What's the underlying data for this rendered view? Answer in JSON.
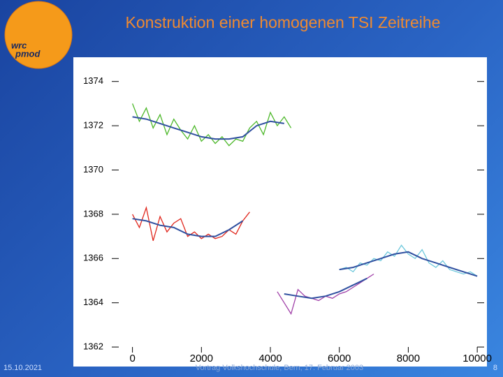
{
  "logo": {
    "line1": "wrc",
    "line2": "pmod"
  },
  "footer": {
    "date": "15.10.2021",
    "center": "Vortrag Volkshochschule, Bern, 17. Februar 2003",
    "page": "8"
  },
  "chart_data": {
    "type": "line",
    "title": "Konstruktion einer homogenen TSI Zeitreihe",
    "xlim": [
      -600,
      10200
    ],
    "xticks": [
      0,
      2000,
      4000,
      6000,
      8000,
      10000
    ],
    "ylim": [
      1361.75,
      1375
    ],
    "yticks": [
      1362,
      1364,
      1366,
      1368,
      1370,
      1372,
      1374
    ],
    "series": [
      {
        "color": "#4db82a",
        "x": [
          0,
          200,
          400,
          600,
          800,
          1000,
          1200,
          1400,
          1600,
          1800,
          2000,
          2200,
          2400,
          2600,
          2800,
          3000,
          3200,
          3400,
          3600,
          3800,
          4000,
          4200,
          4400,
          4600
        ],
        "values": [
          1373.0,
          1372.2,
          1372.8,
          1371.9,
          1372.5,
          1371.6,
          1372.3,
          1371.8,
          1371.4,
          1372.0,
          1371.3,
          1371.6,
          1371.2,
          1371.5,
          1371.1,
          1371.4,
          1371.3,
          1371.9,
          1372.2,
          1371.6,
          1372.6,
          1372.0,
          1372.4,
          1371.9
        ]
      },
      {
        "color": "#3050a0",
        "x": [
          0,
          400,
          800,
          1200,
          1600,
          2000,
          2400,
          2800,
          3200,
          3600,
          4000,
          4400
        ],
        "values": [
          1372.4,
          1372.3,
          1372.1,
          1371.9,
          1371.7,
          1371.5,
          1371.4,
          1371.4,
          1371.5,
          1372.0,
          1372.2,
          1372.1
        ]
      },
      {
        "color": "#e0261c",
        "x": [
          0,
          200,
          400,
          600,
          800,
          1000,
          1200,
          1400,
          1600,
          1800,
          2000,
          2200,
          2400,
          2600,
          2800,
          3000,
          3200,
          3400
        ],
        "values": [
          1368.0,
          1367.4,
          1368.3,
          1366.8,
          1367.9,
          1367.2,
          1367.6,
          1367.8,
          1367.0,
          1367.2,
          1366.9,
          1367.1,
          1366.9,
          1367.0,
          1367.3,
          1367.1,
          1367.7,
          1368.1
        ]
      },
      {
        "color": "#3050a0",
        "x": [
          0,
          400,
          800,
          1200,
          1600,
          2000,
          2400,
          2800,
          3200
        ],
        "values": [
          1367.8,
          1367.7,
          1367.5,
          1367.4,
          1367.1,
          1367.0,
          1367.0,
          1367.3,
          1367.7
        ]
      },
      {
        "color": "#a040a8",
        "x": [
          4200,
          4400,
          4600,
          4800,
          5000,
          5200,
          5400,
          5600,
          5800,
          6000,
          6200,
          6400,
          6600,
          6800,
          7000
        ],
        "values": [
          1364.5,
          1364.0,
          1363.5,
          1364.6,
          1364.3,
          1364.2,
          1364.1,
          1364.3,
          1364.2,
          1364.4,
          1364.5,
          1364.7,
          1364.9,
          1365.1,
          1365.3
        ]
      },
      {
        "color": "#3050a0",
        "x": [
          4400,
          4800,
          5200,
          5600,
          6000,
          6400,
          6800
        ],
        "values": [
          1364.4,
          1364.3,
          1364.2,
          1364.3,
          1364.5,
          1364.8,
          1365.1
        ]
      },
      {
        "color": "#6ec8dc",
        "x": [
          6000,
          6200,
          6400,
          6600,
          6800,
          7000,
          7200,
          7400,
          7600,
          7800,
          8000,
          8200,
          8400,
          8600,
          8800,
          9000,
          9200,
          9400,
          9600,
          9800,
          10000
        ],
        "values": [
          1365.5,
          1365.6,
          1365.4,
          1365.8,
          1365.7,
          1366.0,
          1365.9,
          1366.3,
          1366.1,
          1366.6,
          1366.2,
          1366.0,
          1366.4,
          1365.8,
          1365.6,
          1365.9,
          1365.5,
          1365.4,
          1365.3,
          1365.4,
          1365.2
        ]
      },
      {
        "color": "#3050a0",
        "x": [
          6000,
          6400,
          6800,
          7200,
          7600,
          8000,
          8400,
          8800,
          9200,
          9600,
          10000
        ],
        "values": [
          1365.5,
          1365.6,
          1365.8,
          1366.0,
          1366.2,
          1366.3,
          1366.0,
          1365.8,
          1365.6,
          1365.4,
          1365.2
        ]
      }
    ]
  }
}
